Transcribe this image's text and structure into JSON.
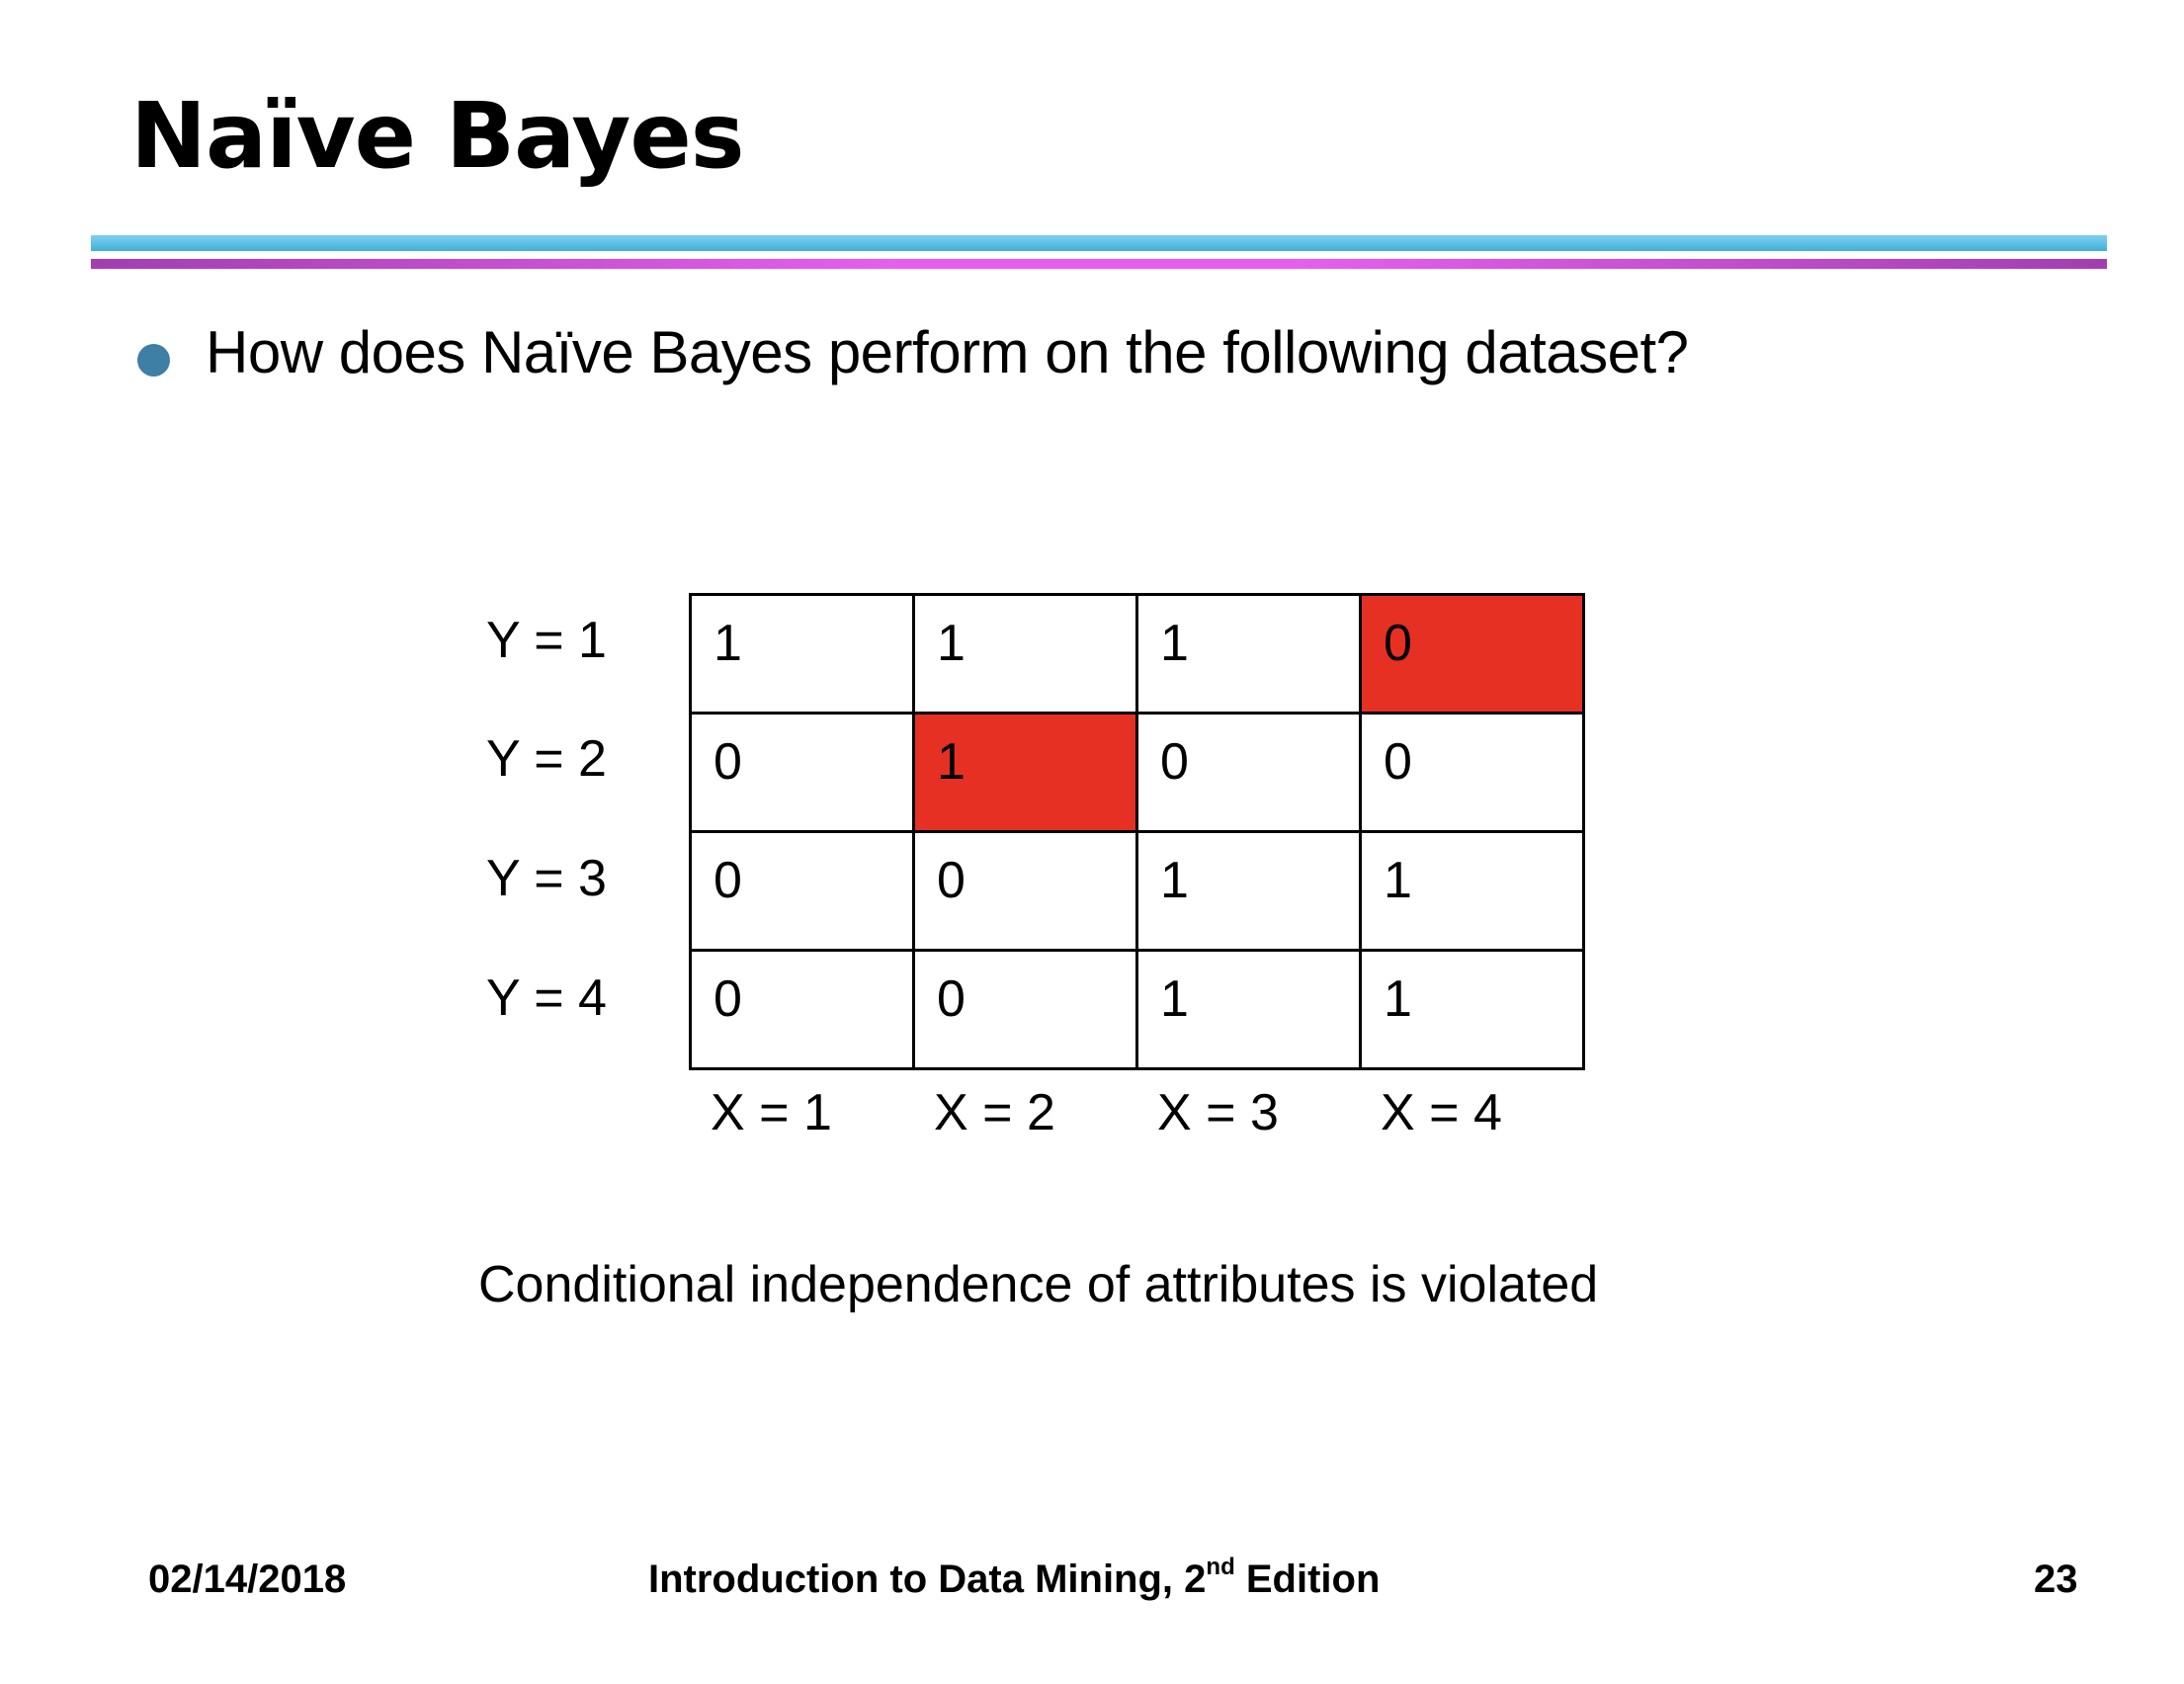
{
  "slide": {
    "title": "Naïve Bayes",
    "bullet": "How does Naïve Bayes perform on the following dataset?",
    "caption": "Conditional independence of attributes is violated"
  },
  "table": {
    "row_labels": [
      "Y = 1",
      "Y = 2",
      "Y = 3",
      "Y = 4"
    ],
    "col_labels": [
      "X = 1",
      "X = 2",
      "X = 3",
      "X = 4"
    ],
    "rows": [
      [
        "1",
        "1",
        "1",
        "0"
      ],
      [
        "0",
        "1",
        "0",
        "0"
      ],
      [
        "0",
        "0",
        "1",
        "1"
      ],
      [
        "0",
        "0",
        "1",
        "1"
      ]
    ],
    "highlight_color": "#e63024"
  },
  "footer": {
    "date": "02/14/2018",
    "course_prefix": "Introduction to Data Mining, 2",
    "course_sup": "nd",
    "course_suffix": " Edition",
    "page": "23"
  },
  "colors": {
    "bullet": "#3e7fa6",
    "rule_blue": "#3fb0dc",
    "rule_purple": "#d94fe6"
  }
}
